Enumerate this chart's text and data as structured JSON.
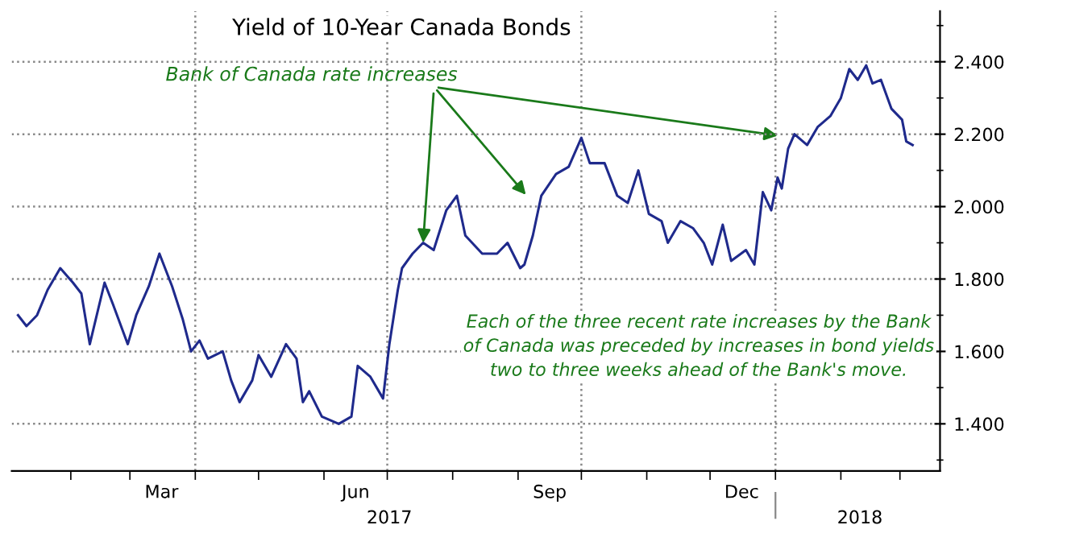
{
  "chart_data": {
    "type": "line",
    "title": "Yield of 10-Year Canada Bonds",
    "x": [
      "2017-01-07",
      "2017-01-11",
      "2017-01-16",
      "2017-01-21",
      "2017-01-27",
      "2017-02-02",
      "2017-02-06",
      "2017-02-10",
      "2017-02-17",
      "2017-02-21",
      "2017-02-28",
      "2017-03-04",
      "2017-03-10",
      "2017-03-15",
      "2017-03-21",
      "2017-03-26",
      "2017-03-30",
      "2017-04-03",
      "2017-04-07",
      "2017-04-14",
      "2017-04-18",
      "2017-04-22",
      "2017-04-28",
      "2017-05-01",
      "2017-05-07",
      "2017-05-14",
      "2017-05-19",
      "2017-05-22",
      "2017-05-25",
      "2017-05-31",
      "2017-06-08",
      "2017-06-14",
      "2017-06-17",
      "2017-06-23",
      "2017-06-29",
      "2017-07-02",
      "2017-07-06",
      "2017-07-08",
      "2017-07-13",
      "2017-07-18",
      "2017-07-23",
      "2017-07-29",
      "2017-08-03",
      "2017-08-07",
      "2017-08-15",
      "2017-08-22",
      "2017-08-27",
      "2017-09-02",
      "2017-09-04",
      "2017-09-08",
      "2017-09-12",
      "2017-09-19",
      "2017-09-25",
      "2017-10-01",
      "2017-10-05",
      "2017-10-12",
      "2017-10-18",
      "2017-10-23",
      "2017-10-28",
      "2017-11-02",
      "2017-11-08",
      "2017-11-11",
      "2017-11-17",
      "2017-11-23",
      "2017-11-28",
      "2017-12-02",
      "2017-12-07",
      "2017-12-11",
      "2017-12-18",
      "2017-12-22",
      "2017-12-24",
      "2017-12-26",
      "2017-12-30",
      "2018-01-02",
      "2018-01-04",
      "2018-01-07",
      "2018-01-10",
      "2018-01-16",
      "2018-01-21",
      "2018-01-27",
      "2018-02-01",
      "2018-02-05",
      "2018-02-09",
      "2018-02-13",
      "2018-02-16",
      "2018-02-20",
      "2018-02-25",
      "2018-03-02",
      "2018-03-04",
      "2018-03-07"
    ],
    "series": [
      {
        "color": "#1f2a8c",
        "values": [
          1.7,
          1.67,
          1.7,
          1.77,
          1.83,
          1.79,
          1.76,
          1.62,
          1.79,
          1.73,
          1.62,
          1.7,
          1.78,
          1.87,
          1.78,
          1.69,
          1.6,
          1.63,
          1.58,
          1.6,
          1.52,
          1.46,
          1.52,
          1.59,
          1.53,
          1.62,
          1.58,
          1.46,
          1.49,
          1.42,
          1.4,
          1.42,
          1.56,
          1.53,
          1.47,
          1.62,
          1.77,
          1.83,
          1.87,
          1.9,
          1.88,
          1.99,
          2.03,
          1.92,
          1.87,
          1.87,
          1.9,
          1.83,
          1.84,
          1.92,
          2.03,
          2.09,
          2.11,
          2.19,
          2.12,
          2.12,
          2.03,
          2.01,
          2.1,
          1.98,
          1.96,
          1.9,
          1.96,
          1.94,
          1.9,
          1.84,
          1.95,
          1.85,
          1.88,
          1.84,
          1.94,
          2.04,
          1.99,
          2.08,
          2.05,
          2.16,
          2.2,
          2.17,
          2.22,
          2.25,
          2.3,
          2.38,
          2.35,
          2.39,
          2.34,
          2.35,
          2.27,
          2.24,
          2.18,
          2.17
        ]
      }
    ],
    "xlim": [
      "2017-01-04",
      "2018-03-20"
    ],
    "xticks": [
      {
        "value": "2017-02-01",
        "label": null
      },
      {
        "value": "2017-03-01",
        "label": null
      },
      {
        "value": "2017-04-01",
        "label": null
      },
      {
        "value": "2017-05-01",
        "label": null
      },
      {
        "value": "2017-06-01",
        "label": null
      },
      {
        "value": "2017-07-01",
        "label": null
      },
      {
        "value": "2017-08-01",
        "label": null
      },
      {
        "value": "2017-09-01",
        "label": null
      },
      {
        "value": "2017-10-01",
        "label": null
      },
      {
        "value": "2017-11-01",
        "label": null
      },
      {
        "value": "2017-12-01",
        "label": null
      },
      {
        "value": "2018-01-01",
        "label": null
      },
      {
        "value": "2018-02-01",
        "label": null
      },
      {
        "value": "2018-03-01",
        "label": null
      },
      {
        "value": "2017-03-16",
        "label": "Mar"
      },
      {
        "value": "2017-06-16",
        "label": "Jun"
      },
      {
        "value": "2017-09-16",
        "label": "Sep"
      },
      {
        "value": "2017-12-16",
        "label": "Dec"
      }
    ],
    "x2lim": [
      "2017-01-04",
      "2018-03-20"
    ],
    "x2ticks": [
      {
        "value": "2017-07-02",
        "label": "2017"
      },
      {
        "value": "2018-01-01",
        "label": null
      },
      {
        "value": "2018-02-10",
        "label": "2018"
      }
    ],
    "ylim": [
      1.27,
      2.54
    ],
    "yticks": [
      {
        "value": 1.3,
        "label": null
      },
      {
        "value": 1.4,
        "label": "1.400"
      },
      {
        "value": 1.5,
        "label": null
      },
      {
        "value": 1.6,
        "label": "1.600"
      },
      {
        "value": 1.7,
        "label": null
      },
      {
        "value": 1.8,
        "label": "1.800"
      },
      {
        "value": 1.9,
        "label": null
      },
      {
        "value": 2.0,
        "label": "2.000"
      },
      {
        "value": 2.1,
        "label": null
      },
      {
        "value": 2.2,
        "label": "2.200"
      },
      {
        "value": 2.3,
        "label": null
      },
      {
        "value": 2.4,
        "label": "2.400"
      },
      {
        "value": 2.5,
        "label": null
      }
    ],
    "grid": "y",
    "ref_lines": [
      {
        "axis": "x",
        "value": "2017-04-01",
        "color": "#888888",
        "line_style": "dotted"
      },
      {
        "axis": "x",
        "value": "2017-07-01",
        "color": "#888888",
        "line_style": "dotted"
      },
      {
        "axis": "x",
        "value": "2017-10-01",
        "color": "#888888",
        "line_style": "dotted"
      },
      {
        "axis": "x",
        "value": "2018-01-01",
        "color": "#888888",
        "line_style": "dotted"
      }
    ],
    "annotations": [
      {
        "text": "Bank of Canada rate increases",
        "x": "2017-07-18",
        "y": 1.9
      },
      "Each of the three recent rate increases by the Bank\nof Canada was preceded by increases in bond yields\ntwo to three weeks ahead of the Bank's move."
    ],
    "line_style": "solid",
    "marker": "none",
    "legend": false
  }
}
